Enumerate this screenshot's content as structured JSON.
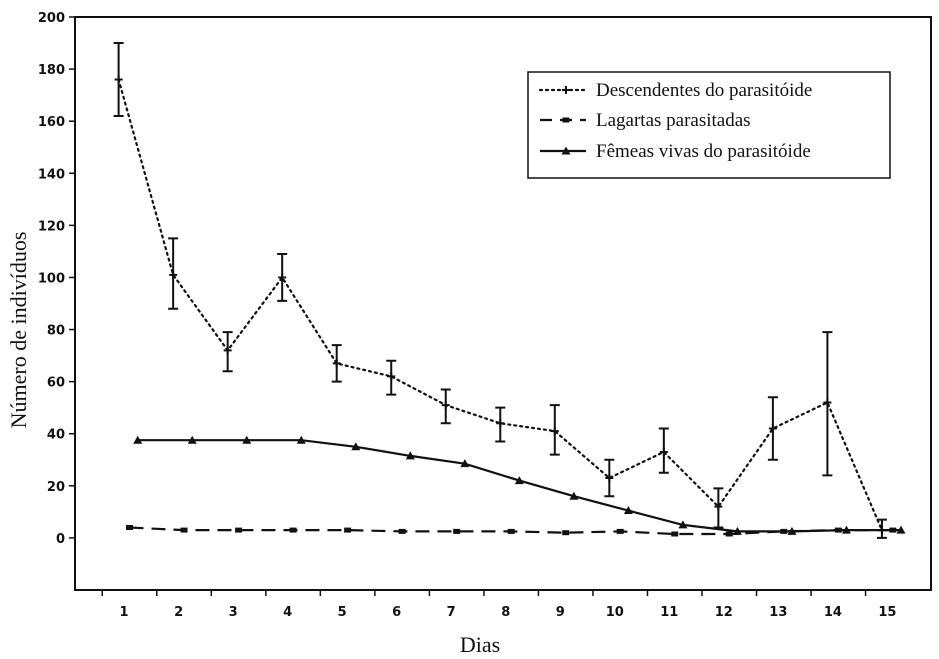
{
  "chart_data": {
    "type": "line",
    "xlabel": "Dias",
    "ylabel": "Número de indivíduos",
    "x_ticks": [
      "1",
      "2",
      "3",
      "4",
      "5",
      "6",
      "7",
      "8",
      "9",
      "10",
      "11",
      "12",
      "13",
      "14",
      "15"
    ],
    "y_ticks": [
      "0",
      "20",
      "40",
      "60",
      "80",
      "100",
      "120",
      "140",
      "160",
      "180",
      "200"
    ],
    "xlim": [
      0,
      15.7
    ],
    "ylim": [
      -20,
      200
    ],
    "grid": false,
    "legend_position": "top-right",
    "series": [
      {
        "name": "Descendentes do parasitóide",
        "style": "dotted",
        "marker": "plus",
        "color": "#111111",
        "points": [
          {
            "x": 0.8,
            "y": 176,
            "err_low": 162,
            "err_high": 190
          },
          {
            "x": 1.8,
            "y": 101,
            "err_low": 88,
            "err_high": 115
          },
          {
            "x": 2.8,
            "y": 72,
            "err_low": 64,
            "err_high": 79
          },
          {
            "x": 3.8,
            "y": 100,
            "err_low": 91,
            "err_high": 109
          },
          {
            "x": 4.8,
            "y": 67,
            "err_low": 60,
            "err_high": 74
          },
          {
            "x": 5.8,
            "y": 62,
            "err_low": 55,
            "err_high": 68
          },
          {
            "x": 6.8,
            "y": 51,
            "err_low": 44,
            "err_high": 57
          },
          {
            "x": 7.8,
            "y": 44,
            "err_low": 37,
            "err_high": 50
          },
          {
            "x": 8.8,
            "y": 41,
            "err_low": 32,
            "err_high": 51
          },
          {
            "x": 9.8,
            "y": 23,
            "err_low": 16,
            "err_high": 30
          },
          {
            "x": 10.8,
            "y": 33,
            "err_low": 25,
            "err_high": 42
          },
          {
            "x": 11.8,
            "y": 12,
            "err_low": 4,
            "err_high": 19
          },
          {
            "x": 12.8,
            "y": 42,
            "err_low": 30,
            "err_high": 54
          },
          {
            "x": 13.8,
            "y": 52,
            "err_low": 24,
            "err_high": 79
          },
          {
            "x": 14.8,
            "y": 3,
            "err_low": 0,
            "err_high": 7
          }
        ]
      },
      {
        "name": "Lagartas parasitadas",
        "style": "dashed",
        "marker": "square",
        "color": "#111111",
        "points": [
          {
            "x": 1,
            "y": 4
          },
          {
            "x": 2,
            "y": 3
          },
          {
            "x": 3,
            "y": 3
          },
          {
            "x": 4,
            "y": 3
          },
          {
            "x": 5,
            "y": 3
          },
          {
            "x": 6,
            "y": 2.5
          },
          {
            "x": 7,
            "y": 2.5
          },
          {
            "x": 8,
            "y": 2.5
          },
          {
            "x": 9,
            "y": 2
          },
          {
            "x": 10,
            "y": 2.5
          },
          {
            "x": 11,
            "y": 1.5
          },
          {
            "x": 12,
            "y": 1.5
          },
          {
            "x": 13,
            "y": 2.5
          },
          {
            "x": 14,
            "y": 3
          },
          {
            "x": 15,
            "y": 3
          }
        ]
      },
      {
        "name": "Fêmeas vivas do parasitóide",
        "style": "solid",
        "marker": "triangle",
        "color": "#111111",
        "points": [
          {
            "x": 1.15,
            "y": 37.5
          },
          {
            "x": 2.15,
            "y": 37.5
          },
          {
            "x": 3.15,
            "y": 37.5
          },
          {
            "x": 4.15,
            "y": 37.5
          },
          {
            "x": 5.15,
            "y": 35
          },
          {
            "x": 6.15,
            "y": 31.5
          },
          {
            "x": 7.15,
            "y": 28.5
          },
          {
            "x": 8.15,
            "y": 22
          },
          {
            "x": 9.15,
            "y": 16
          },
          {
            "x": 10.15,
            "y": 10.5
          },
          {
            "x": 11.15,
            "y": 5
          },
          {
            "x": 12.15,
            "y": 2.5
          },
          {
            "x": 13.15,
            "y": 2.5
          },
          {
            "x": 14.15,
            "y": 3
          },
          {
            "x": 15.15,
            "y": 3
          }
        ]
      }
    ]
  }
}
